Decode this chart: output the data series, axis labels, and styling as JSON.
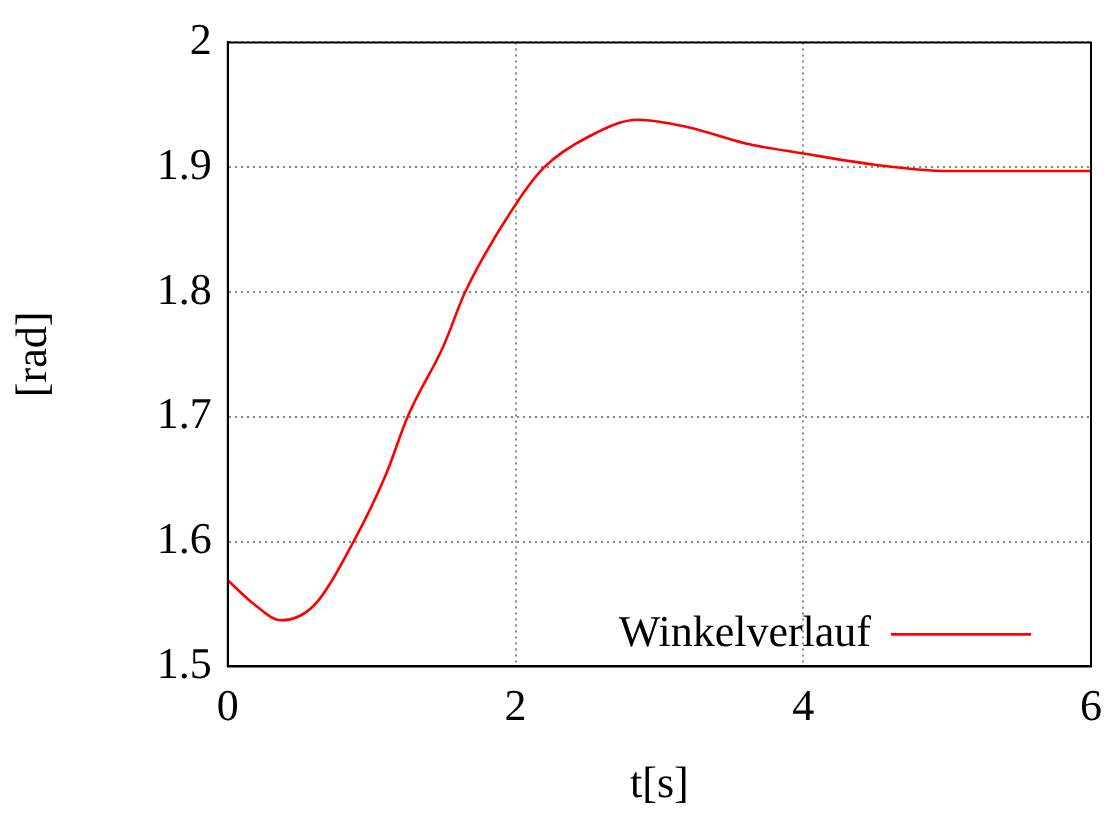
{
  "chart_data": {
    "type": "line",
    "xlabel": "t[s]",
    "ylabel": "[rad]",
    "x": [
      0,
      0.17,
      0.37,
      0.6,
      0.86,
      1.1,
      1.25,
      1.5,
      1.65,
      2,
      2.2,
      2.5,
      2.85,
      3.2,
      3.6,
      4,
      4.5,
      5,
      6
    ],
    "series": [
      {
        "name": "Winkelverlauf",
        "color": "#ff0000",
        "values": [
          1.569,
          1.551,
          1.537,
          1.549,
          1.597,
          1.654,
          1.7,
          1.757,
          1.8,
          1.87,
          1.9,
          1.924,
          1.938,
          1.932,
          1.919,
          1.911,
          1.902,
          1.897,
          1.897
        ]
      }
    ],
    "xlim": [
      0,
      6
    ],
    "xticks": [
      0,
      2,
      4,
      6
    ],
    "ylim": [
      1.5,
      2
    ],
    "yticks": [
      1.5,
      1.6,
      1.7,
      1.8,
      1.9,
      2
    ],
    "grid": true,
    "legend": "bottom right",
    "marker": "none",
    "line_style": "solid"
  }
}
